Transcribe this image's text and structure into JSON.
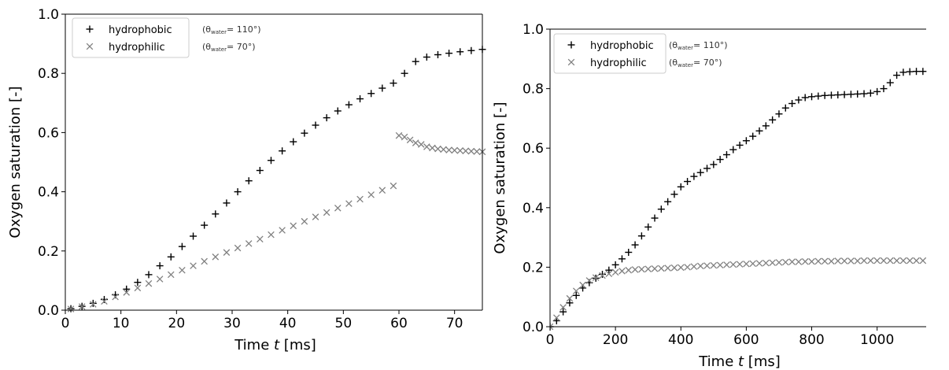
{
  "chart_data": [
    {
      "type": "scatter",
      "xlabel_parts": [
        "Time ",
        "t",
        " [ms]"
      ],
      "ylabel": "Oxygen saturation [-]",
      "xlim": [
        0,
        75
      ],
      "ylim": [
        0.0,
        1.0
      ],
      "xticks": [
        "0",
        "10",
        "20",
        "30",
        "40",
        "50",
        "60",
        "70"
      ],
      "xtick_values": [
        0,
        10,
        20,
        30,
        40,
        50,
        60,
        70
      ],
      "yticks": [
        "0.0",
        "0.2",
        "0.4",
        "0.6",
        "0.8",
        "1.0"
      ],
      "ytick_values": [
        0.0,
        0.2,
        0.4,
        0.6,
        0.8,
        1.0
      ],
      "grid": false,
      "legend_position": "top-left",
      "legend": [
        {
          "label": "hydrophobic",
          "marker": "plus",
          "color": "#000000",
          "note_pre": "(θ",
          "note_sub": "water",
          "note_post": "= 110°)"
        },
        {
          "label": "hydrophilic",
          "marker": "x",
          "color": "#808080",
          "note_pre": "(θ",
          "note_sub": "water",
          "note_post": "= 70°)"
        }
      ],
      "series": [
        {
          "name": "hydrophobic",
          "marker": "plus",
          "color": "#000000",
          "x": [
            1,
            3,
            5,
            7,
            9,
            11,
            13,
            15,
            17,
            19,
            21,
            23,
            25,
            27,
            29,
            31,
            33,
            35,
            37,
            39,
            41,
            43,
            45,
            47,
            49,
            51,
            53,
            55,
            57,
            59,
            61,
            63,
            65,
            67,
            69,
            71,
            73,
            75
          ],
          "y": [
            0.005,
            0.013,
            0.023,
            0.036,
            0.052,
            0.071,
            0.094,
            0.12,
            0.15,
            0.18,
            0.215,
            0.25,
            0.287,
            0.325,
            0.362,
            0.4,
            0.437,
            0.472,
            0.506,
            0.538,
            0.569,
            0.598,
            0.625,
            0.65,
            0.673,
            0.694,
            0.714,
            0.732,
            0.75,
            0.767,
            0.8,
            0.84,
            0.855,
            0.863,
            0.868,
            0.873,
            0.877,
            0.881
          ]
        },
        {
          "name": "hydrophilic",
          "marker": "x",
          "color": "#808080",
          "x": [
            1,
            3,
            5,
            7,
            9,
            11,
            13,
            15,
            17,
            19,
            21,
            23,
            25,
            27,
            29,
            31,
            33,
            35,
            37,
            39,
            41,
            43,
            45,
            47,
            49,
            51,
            53,
            55,
            57,
            59,
            60,
            61,
            62,
            63,
            64,
            65,
            66,
            67,
            68,
            69,
            70,
            71,
            72,
            73,
            74,
            75
          ],
          "y": [
            0.004,
            0.012,
            0.02,
            0.03,
            0.045,
            0.06,
            0.075,
            0.09,
            0.105,
            0.12,
            0.135,
            0.15,
            0.165,
            0.18,
            0.195,
            0.21,
            0.225,
            0.24,
            0.255,
            0.27,
            0.285,
            0.3,
            0.315,
            0.33,
            0.345,
            0.36,
            0.375,
            0.39,
            0.405,
            0.42,
            0.59,
            0.585,
            0.575,
            0.565,
            0.56,
            0.552,
            0.548,
            0.545,
            0.543,
            0.541,
            0.54,
            0.539,
            0.538,
            0.537,
            0.536,
            0.535
          ]
        }
      ]
    },
    {
      "type": "scatter",
      "xlabel_parts": [
        "Time ",
        "t",
        " [ms]"
      ],
      "ylabel": "Oxygen saturation [-]",
      "xlim": [
        0,
        1150
      ],
      "ylim": [
        0.0,
        1.0
      ],
      "xticks": [
        "0",
        "200",
        "400",
        "600",
        "800",
        "1000"
      ],
      "xtick_values": [
        0,
        200,
        400,
        600,
        800,
        1000
      ],
      "yticks": [
        "0.0",
        "0.2",
        "0.4",
        "0.6",
        "0.8",
        "1.0"
      ],
      "ytick_values": [
        0.0,
        0.2,
        0.4,
        0.6,
        0.8,
        1.0
      ],
      "grid": false,
      "legend_position": "top-left",
      "legend": [
        {
          "label": "hydrophobic",
          "marker": "plus",
          "color": "#000000",
          "note_pre": "(θ",
          "note_sub": "water",
          "note_post": "= 110°)"
        },
        {
          "label": "hydrophilic",
          "marker": "x",
          "color": "#808080",
          "note_pre": "(θ",
          "note_sub": "water",
          "note_post": "= 70°)"
        }
      ],
      "series": [
        {
          "name": "hydrophobic",
          "marker": "plus",
          "color": "#000000",
          "x": [
            0,
            20,
            40,
            60,
            80,
            100,
            120,
            140,
            160,
            180,
            200,
            220,
            240,
            260,
            280,
            300,
            320,
            340,
            360,
            380,
            400,
            420,
            440,
            460,
            480,
            500,
            520,
            540,
            560,
            580,
            600,
            620,
            640,
            660,
            680,
            700,
            720,
            740,
            760,
            780,
            800,
            820,
            840,
            860,
            880,
            900,
            920,
            940,
            960,
            980,
            1000,
            1020,
            1040,
            1060,
            1080,
            1100,
            1120,
            1140
          ],
          "y": [
            0.0,
            0.02,
            0.05,
            0.08,
            0.105,
            0.13,
            0.148,
            0.163,
            0.176,
            0.19,
            0.208,
            0.228,
            0.25,
            0.275,
            0.305,
            0.335,
            0.365,
            0.395,
            0.42,
            0.445,
            0.47,
            0.488,
            0.505,
            0.518,
            0.532,
            0.545,
            0.562,
            0.578,
            0.595,
            0.61,
            0.625,
            0.64,
            0.658,
            0.675,
            0.695,
            0.715,
            0.735,
            0.75,
            0.762,
            0.77,
            0.773,
            0.775,
            0.777,
            0.778,
            0.779,
            0.78,
            0.781,
            0.782,
            0.783,
            0.785,
            0.79,
            0.8,
            0.82,
            0.845,
            0.855,
            0.857,
            0.858,
            0.858
          ]
        },
        {
          "name": "hydrophilic",
          "marker": "x",
          "color": "#808080",
          "x": [
            0,
            20,
            40,
            60,
            80,
            100,
            120,
            140,
            160,
            180,
            200,
            220,
            240,
            260,
            280,
            300,
            320,
            340,
            360,
            380,
            400,
            420,
            440,
            460,
            480,
            500,
            520,
            540,
            560,
            580,
            600,
            620,
            640,
            660,
            680,
            700,
            720,
            740,
            760,
            780,
            800,
            820,
            840,
            860,
            880,
            900,
            920,
            940,
            960,
            980,
            1000,
            1020,
            1040,
            1060,
            1080,
            1100,
            1120,
            1140
          ],
          "y": [
            0.0,
            0.03,
            0.065,
            0.095,
            0.12,
            0.14,
            0.155,
            0.165,
            0.172,
            0.178,
            0.183,
            0.187,
            0.19,
            0.192,
            0.193,
            0.194,
            0.195,
            0.196,
            0.197,
            0.198,
            0.199,
            0.2,
            0.202,
            0.204,
            0.205,
            0.206,
            0.207,
            0.208,
            0.209,
            0.21,
            0.211,
            0.212,
            0.213,
            0.214,
            0.215,
            0.216,
            0.217,
            0.218,
            0.218,
            0.219,
            0.219,
            0.22,
            0.22,
            0.22,
            0.221,
            0.221,
            0.221,
            0.221,
            0.222,
            0.222,
            0.222,
            0.222,
            0.222,
            0.222,
            0.222,
            0.222,
            0.222,
            0.222
          ]
        }
      ]
    }
  ]
}
